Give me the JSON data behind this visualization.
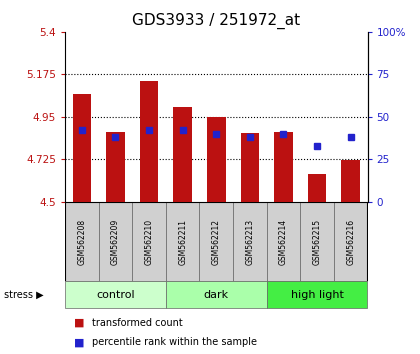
{
  "title": "GDS3933 / 251972_at",
  "samples": [
    "GSM562208",
    "GSM562209",
    "GSM562210",
    "GSM562211",
    "GSM562212",
    "GSM562213",
    "GSM562214",
    "GSM562215",
    "GSM562216"
  ],
  "red_values": [
    5.07,
    4.87,
    5.14,
    5.0,
    4.95,
    4.865,
    4.87,
    4.645,
    4.72
  ],
  "blue_values": [
    42,
    38,
    42,
    42,
    40,
    38,
    40,
    33,
    38
  ],
  "groups": [
    {
      "label": "control",
      "start": 0,
      "end": 3,
      "color": "#ccffcc"
    },
    {
      "label": "dark",
      "start": 3,
      "end": 6,
      "color": "#aaffaa"
    },
    {
      "label": "high light",
      "start": 6,
      "end": 9,
      "color": "#44ee44"
    }
  ],
  "ymin": 4.5,
  "ymax": 5.4,
  "yticks": [
    4.5,
    4.725,
    4.95,
    5.175,
    5.4
  ],
  "ytick_labels": [
    "4.5",
    "4.725",
    "4.95",
    "5.175",
    "5.4"
  ],
  "right_yticks": [
    0,
    25,
    50,
    75,
    100
  ],
  "right_ytick_labels": [
    "0",
    "25",
    "50",
    "75",
    "100%"
  ],
  "red_color": "#bb1111",
  "blue_color": "#2222cc",
  "bar_width": 0.55,
  "title_fontsize": 11,
  "tick_fontsize": 7.5,
  "sample_fontsize": 5.5,
  "group_fontsize": 8,
  "legend_fontsize": 7
}
